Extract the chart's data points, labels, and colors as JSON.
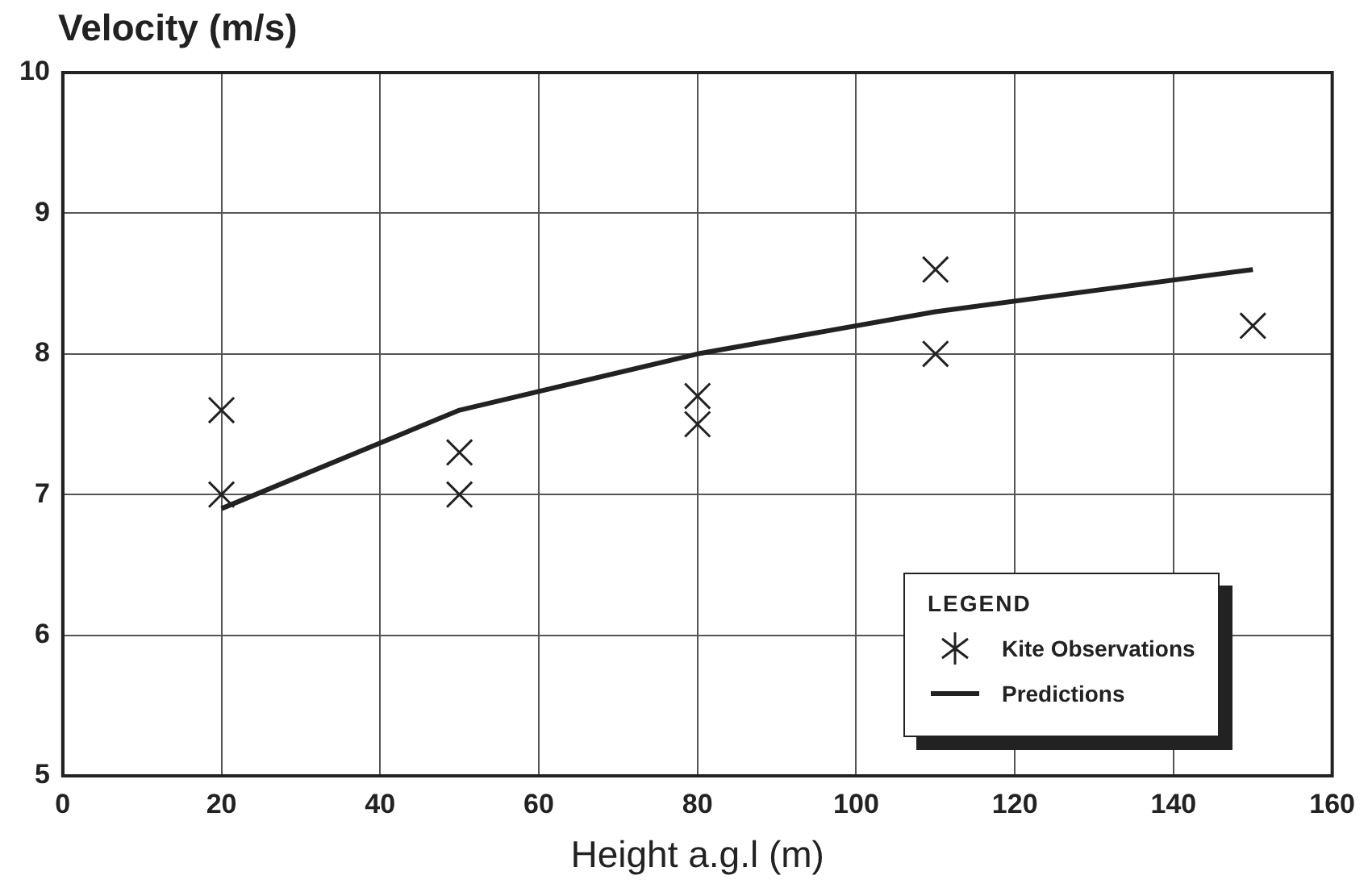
{
  "chart_data": {
    "type": "scatter",
    "ylabel": "Velocity (m/s)",
    "xlabel": "Height a.g.l (m)",
    "legend_title": "LEGEND",
    "legend": "bottom right",
    "grid": true,
    "xlim": [
      0,
      160
    ],
    "xticks": [
      0,
      20,
      40,
      60,
      80,
      100,
      120,
      140,
      160
    ],
    "ylim": [
      5,
      10
    ],
    "yticks": [
      5,
      6,
      7,
      8,
      9,
      10
    ],
    "series": [
      {
        "name": "Kite Observations",
        "marker": "cross",
        "color": "#222222",
        "x": [
          20,
          20,
          50,
          50,
          80,
          80,
          110,
          110,
          150
        ],
        "values": [
          7.6,
          7.0,
          7.3,
          7.0,
          7.7,
          7.5,
          8.6,
          8.0,
          8.2
        ]
      },
      {
        "name": "Predictions",
        "type": "line",
        "color": "#222222",
        "x": [
          20,
          50,
          80,
          110,
          150
        ],
        "values": [
          6.9,
          7.6,
          8.0,
          8.3,
          8.6
        ],
        "line_style": "solid"
      }
    ]
  }
}
